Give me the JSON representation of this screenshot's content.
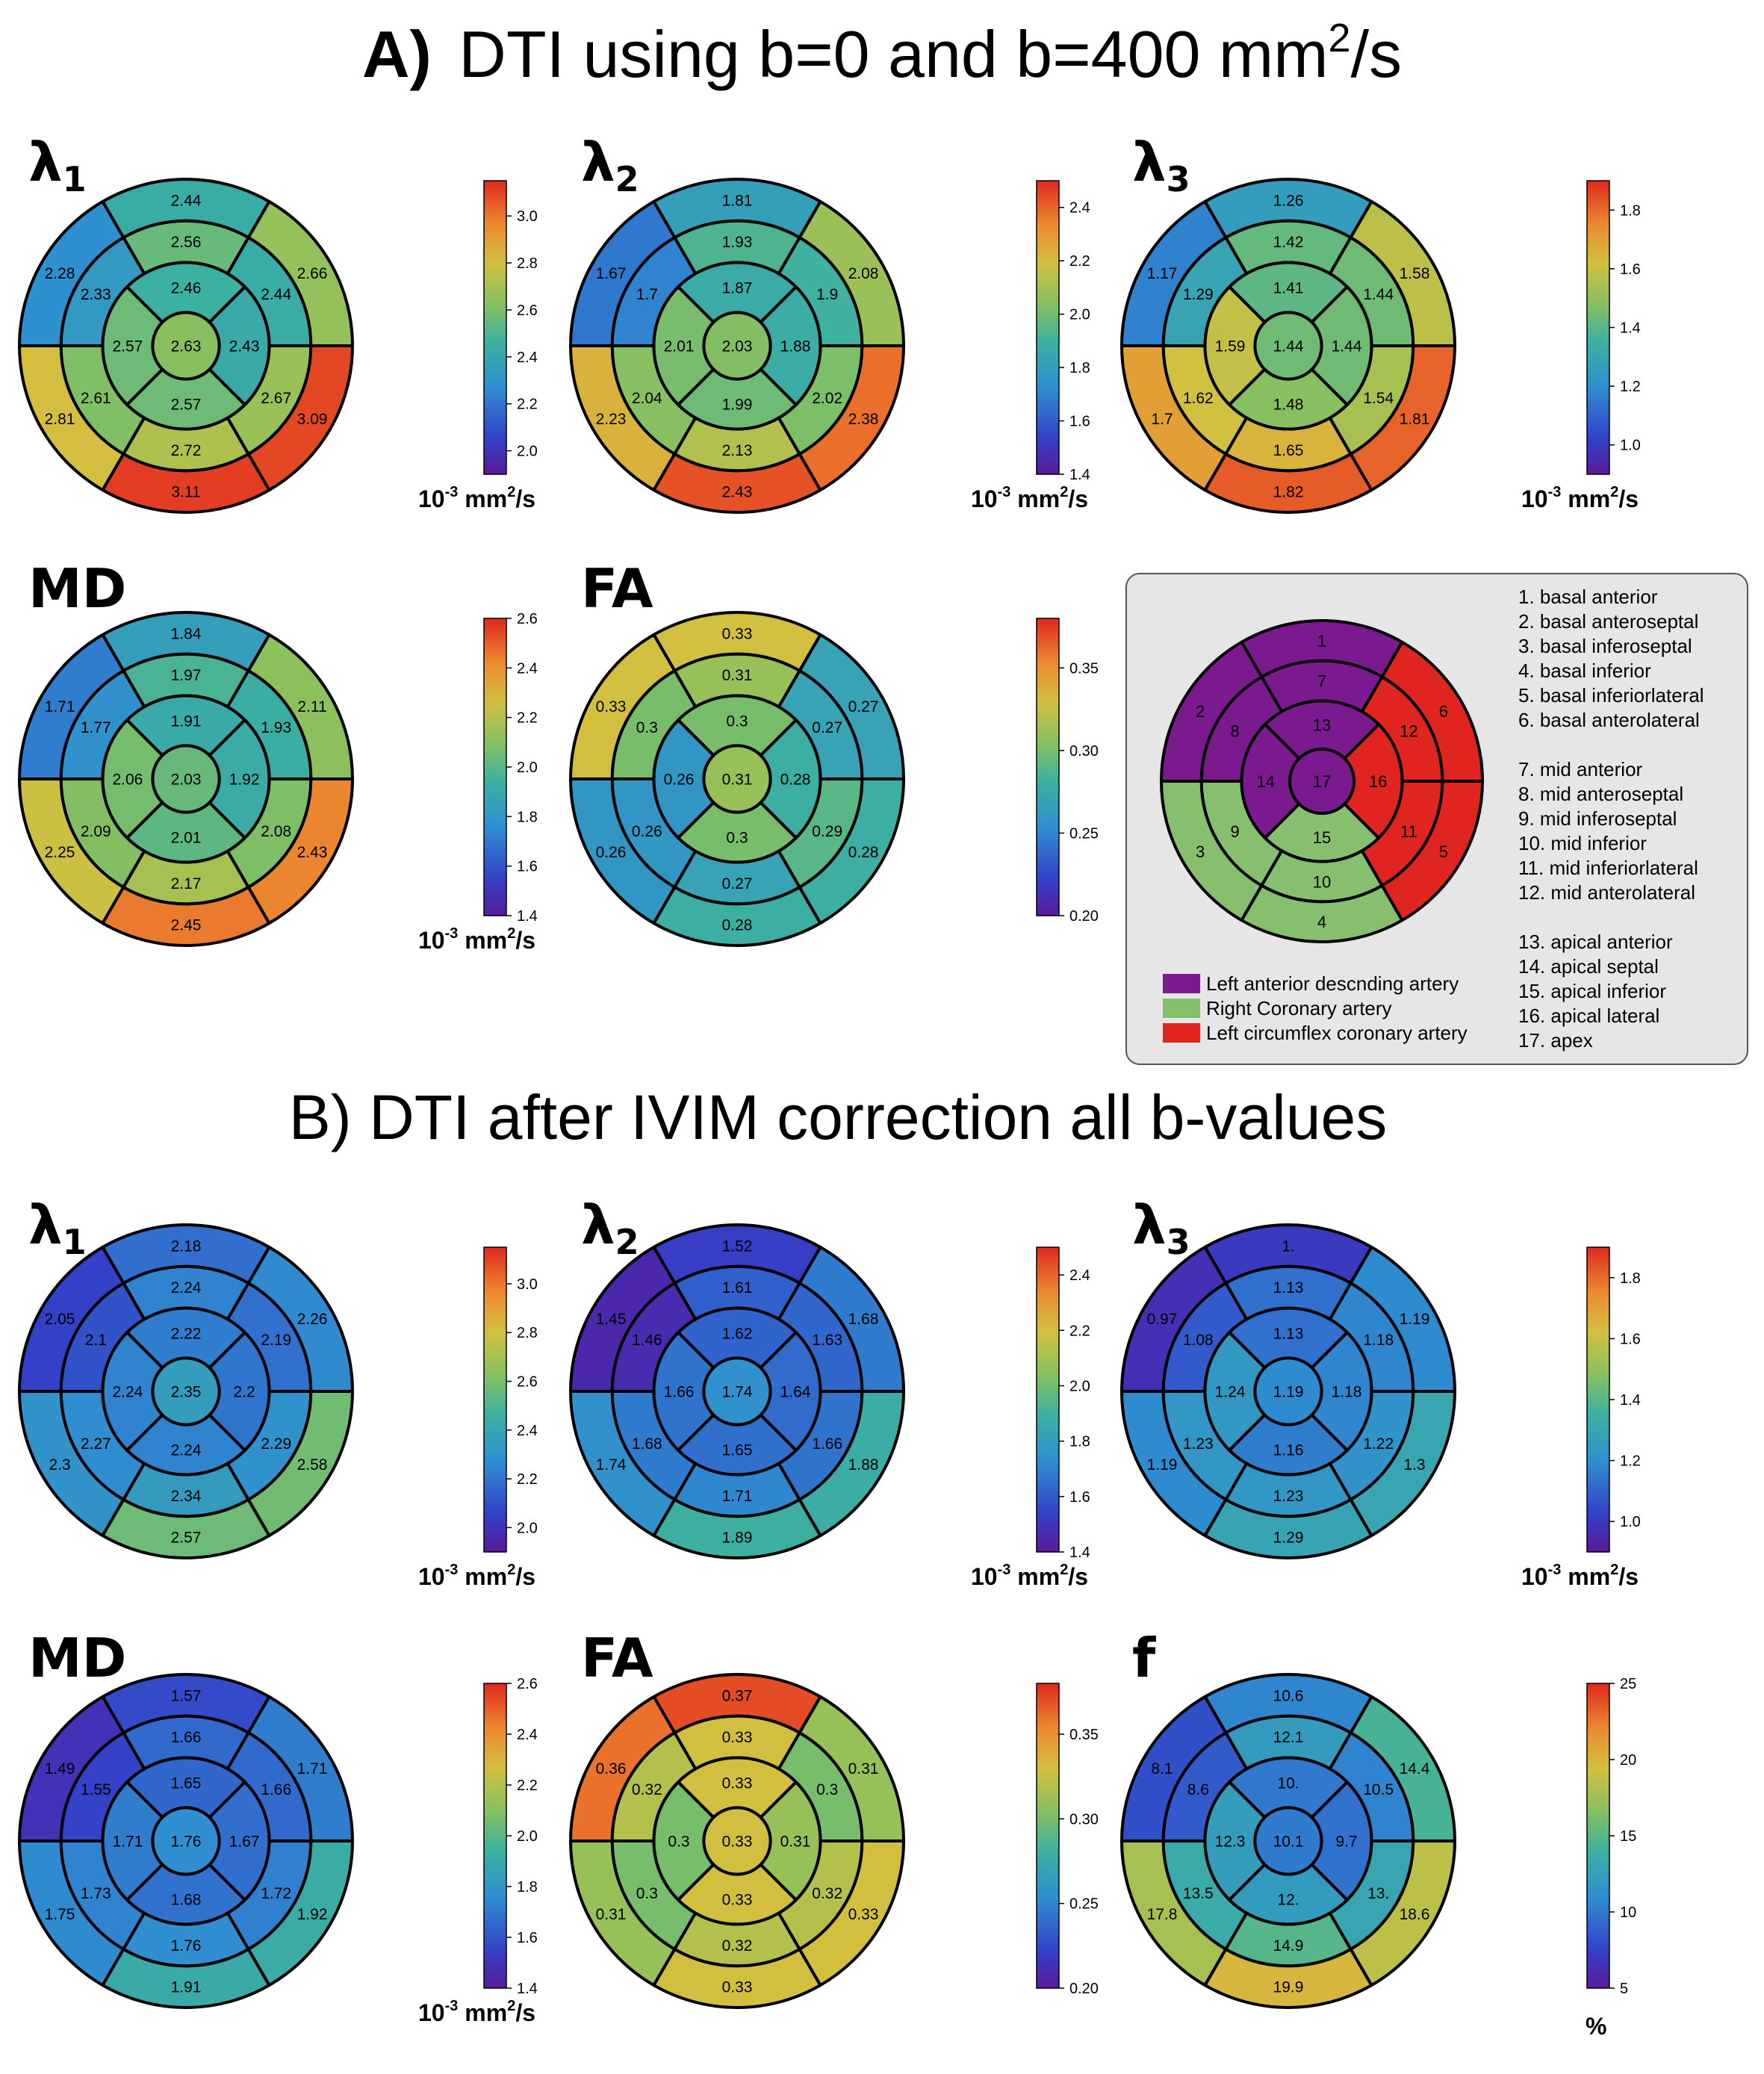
{
  "sections": {
    "a": {
      "prefix": "A)",
      "title": "DTI using b=0 and b=400 mm",
      "sup": "2",
      "suffix": "/s"
    },
    "b": {
      "title": "B) DTI after IVIM correction all b-values"
    }
  },
  "unit": {
    "base": "10",
    "exp": "-3",
    "rest": " mm",
    "sq": "2",
    "tail": "/s"
  },
  "percent_unit": "%",
  "legend": {
    "artery_keys": [
      {
        "label": "Left anterior descnding artery",
        "color": "#7b1a8e"
      },
      {
        "label": "Right Coronary artery",
        "color": "#86c06f"
      },
      {
        "label": "Left circumflex coronary artery",
        "color": "#e0241f"
      }
    ],
    "segment_names": [
      "1.  basal anterior",
      "2.  basal anteroseptal",
      "3.  basal inferoseptal",
      "4.  basal inferior",
      "5.  basal inferiorlateral",
      "6.  basal anterolateral",
      "7.  mid anterior",
      "8.  mid anteroseptal",
      "9.  mid inferoseptal",
      "10. mid inferior",
      "11. mid inferiorlateral",
      "12. mid anterolateral",
      "13. apical anterior",
      "14. apical septal",
      "15. apical inferior",
      "16. apical lateral",
      "17. apex"
    ],
    "map": {
      "territories": [
        "lad",
        "lad",
        "rca",
        "rca",
        "lcx",
        "lcx",
        "lad",
        "lad",
        "rca",
        "rca",
        "lcx",
        "lcx",
        "lad",
        "lad",
        "rca",
        "lcx",
        "lad"
      ],
      "colors": {
        "lad": "#7b1a8e",
        "rca": "#86c06f",
        "lcx": "#e0241f"
      },
      "labels": [
        "1",
        "2",
        "3",
        "4",
        "5",
        "6",
        "7",
        "8",
        "9",
        "10",
        "11",
        "12",
        "13",
        "14",
        "15",
        "16",
        "17"
      ]
    }
  },
  "chart_data": [
    {
      "type": "bullseye",
      "section": "A",
      "name": "λ",
      "sub": "1",
      "unit": "mm2",
      "vmin": 1.9,
      "vmax": 3.15,
      "ticks": [
        {
          "v": 2.0,
          "l": "2.0"
        },
        {
          "v": 2.2,
          "l": "2.2"
        },
        {
          "v": 2.4,
          "l": "2.4"
        },
        {
          "v": 2.6,
          "l": "2.6"
        },
        {
          "v": 2.8,
          "l": "2.8"
        },
        {
          "v": 3.0,
          "l": "3.0"
        }
      ],
      "labels": [
        "2.44",
        "2.28",
        "2.81",
        "3.11",
        "3.09",
        "2.66",
        "2.56",
        "2.33",
        "2.61",
        "2.72",
        "2.67",
        "2.44",
        "2.46",
        "2.57",
        "2.57",
        "2.43",
        "2.63"
      ]
    },
    {
      "type": "bullseye",
      "section": "A",
      "name": "λ",
      "sub": "2",
      "unit": "mm2",
      "vmin": 1.4,
      "vmax": 2.5,
      "ticks": [
        {
          "v": 1.4,
          "l": "1.4"
        },
        {
          "v": 1.6,
          "l": "1.6"
        },
        {
          "v": 1.8,
          "l": "1.8"
        },
        {
          "v": 2.0,
          "l": "2.0"
        },
        {
          "v": 2.2,
          "l": "2.2"
        },
        {
          "v": 2.4,
          "l": "2.4"
        }
      ],
      "labels": [
        "1.81",
        "1.67",
        "2.23",
        "2.43",
        "2.38",
        "2.08",
        "1.93",
        "1.7",
        "2.04",
        "2.13",
        "2.02",
        "1.9",
        "1.87",
        "2.01",
        "1.99",
        "1.88",
        "2.03"
      ]
    },
    {
      "type": "bullseye",
      "section": "A",
      "name": "λ",
      "sub": "3",
      "unit": "mm2",
      "vmin": 0.9,
      "vmax": 1.9,
      "ticks": [
        {
          "v": 1.0,
          "l": "1.0"
        },
        {
          "v": 1.2,
          "l": "1.2"
        },
        {
          "v": 1.4,
          "l": "1.4"
        },
        {
          "v": 1.6,
          "l": "1.6"
        },
        {
          "v": 1.8,
          "l": "1.8"
        }
      ],
      "labels": [
        "1.26",
        "1.17",
        "1.7",
        "1.82",
        "1.81",
        "1.58",
        "1.42",
        "1.29",
        "1.62",
        "1.65",
        "1.54",
        "1.44",
        "1.41",
        "1.59",
        "1.48",
        "1.44",
        "1.44"
      ]
    },
    {
      "type": "bullseye",
      "section": "A",
      "name": "MD",
      "sub": "",
      "unit": "mm2",
      "vmin": 1.4,
      "vmax": 2.6,
      "ticks": [
        {
          "v": 1.4,
          "l": "1.4"
        },
        {
          "v": 1.6,
          "l": "1.6"
        },
        {
          "v": 1.8,
          "l": "1.8"
        },
        {
          "v": 2.0,
          "l": "2.0"
        },
        {
          "v": 2.2,
          "l": "2.2"
        },
        {
          "v": 2.4,
          "l": "2.4"
        },
        {
          "v": 2.6,
          "l": "2.6"
        }
      ],
      "labels": [
        "1.84",
        "1.71",
        "2.25",
        "2.45",
        "2.43",
        "2.11",
        "1.97",
        "1.77",
        "2.09",
        "2.17",
        "2.08",
        "1.93",
        "1.91",
        "2.06",
        "2.01",
        "1.92",
        "2.03"
      ]
    },
    {
      "type": "bullseye",
      "section": "A",
      "name": "FA",
      "sub": "",
      "unit": "",
      "vmin": 0.2,
      "vmax": 0.38,
      "ticks": [
        {
          "v": 0.2,
          "l": "0.20"
        },
        {
          "v": 0.25,
          "l": "0.25"
        },
        {
          "v": 0.3,
          "l": "0.30"
        },
        {
          "v": 0.35,
          "l": "0.35"
        }
      ],
      "labels": [
        "0.33",
        "0.33",
        "0.26",
        "0.28",
        "0.28",
        "0.27",
        "0.31",
        "0.3",
        "0.26",
        "0.27",
        "0.29",
        "0.27",
        "0.3",
        "0.26",
        "0.3",
        "0.28",
        "0.31"
      ]
    },
    {
      "type": "bullseye",
      "section": "B",
      "name": "λ",
      "sub": "1",
      "unit": "mm2",
      "vmin": 1.9,
      "vmax": 3.15,
      "ticks": [
        {
          "v": 2.0,
          "l": "2.0"
        },
        {
          "v": 2.2,
          "l": "2.2"
        },
        {
          "v": 2.4,
          "l": "2.4"
        },
        {
          "v": 2.6,
          "l": "2.6"
        },
        {
          "v": 2.8,
          "l": "2.8"
        },
        {
          "v": 3.0,
          "l": "3.0"
        }
      ],
      "labels": [
        "2.18",
        "2.05",
        "2.3",
        "2.57",
        "2.58",
        "2.26",
        "2.24",
        "2.1",
        "2.27",
        "2.34",
        "2.29",
        "2.19",
        "2.22",
        "2.24",
        "2.24",
        "2.2",
        "2.35"
      ]
    },
    {
      "type": "bullseye",
      "section": "B",
      "name": "λ",
      "sub": "2",
      "unit": "mm2",
      "vmin": 1.4,
      "vmax": 2.5,
      "ticks": [
        {
          "v": 1.4,
          "l": "1.4"
        },
        {
          "v": 1.6,
          "l": "1.6"
        },
        {
          "v": 1.8,
          "l": "1.8"
        },
        {
          "v": 2.0,
          "l": "2.0"
        },
        {
          "v": 2.2,
          "l": "2.2"
        },
        {
          "v": 2.4,
          "l": "2.4"
        }
      ],
      "labels": [
        "1.52",
        "1.45",
        "1.74",
        "1.89",
        "1.88",
        "1.68",
        "1.61",
        "1.46",
        "1.68",
        "1.71",
        "1.66",
        "1.63",
        "1.62",
        "1.66",
        "1.65",
        "1.64",
        "1.74"
      ]
    },
    {
      "type": "bullseye",
      "section": "B",
      "name": "λ",
      "sub": "3",
      "unit": "mm2",
      "vmin": 0.9,
      "vmax": 1.9,
      "ticks": [
        {
          "v": 1.0,
          "l": "1.0"
        },
        {
          "v": 1.2,
          "l": "1.2"
        },
        {
          "v": 1.4,
          "l": "1.4"
        },
        {
          "v": 1.6,
          "l": "1.6"
        },
        {
          "v": 1.8,
          "l": "1.8"
        }
      ],
      "labels": [
        "1.",
        "0.97",
        "1.19",
        "1.29",
        "1.3",
        "1.19",
        "1.13",
        "1.08",
        "1.23",
        "1.23",
        "1.22",
        "1.18",
        "1.13",
        "1.24",
        "1.16",
        "1.18",
        "1.19"
      ]
    },
    {
      "type": "bullseye",
      "section": "B",
      "name": "MD",
      "sub": "",
      "unit": "mm2",
      "vmin": 1.4,
      "vmax": 2.6,
      "ticks": [
        {
          "v": 1.4,
          "l": "1.4"
        },
        {
          "v": 1.6,
          "l": "1.6"
        },
        {
          "v": 1.8,
          "l": "1.8"
        },
        {
          "v": 2.0,
          "l": "2.0"
        },
        {
          "v": 2.2,
          "l": "2.2"
        },
        {
          "v": 2.4,
          "l": "2.4"
        },
        {
          "v": 2.6,
          "l": "2.6"
        }
      ],
      "labels": [
        "1.57",
        "1.49",
        "1.75",
        "1.91",
        "1.92",
        "1.71",
        "1.66",
        "1.55",
        "1.73",
        "1.76",
        "1.72",
        "1.66",
        "1.65",
        "1.71",
        "1.68",
        "1.67",
        "1.76"
      ]
    },
    {
      "type": "bullseye",
      "section": "B",
      "name": "FA",
      "sub": "",
      "unit": "",
      "vmin": 0.2,
      "vmax": 0.38,
      "ticks": [
        {
          "v": 0.2,
          "l": "0.20"
        },
        {
          "v": 0.25,
          "l": "0.25"
        },
        {
          "v": 0.3,
          "l": "0.30"
        },
        {
          "v": 0.35,
          "l": "0.35"
        }
      ],
      "labels": [
        "0.37",
        "0.36",
        "0.31",
        "0.33",
        "0.33",
        "0.31",
        "0.33",
        "0.32",
        "0.3",
        "0.32",
        "0.32",
        "0.3",
        "0.33",
        "0.3",
        "0.33",
        "0.31",
        "0.33"
      ]
    },
    {
      "type": "bullseye",
      "section": "B",
      "name": "f",
      "sub": "",
      "unit": "%",
      "vmin": 5,
      "vmax": 25,
      "ticks": [
        {
          "v": 5,
          "l": "5"
        },
        {
          "v": 10,
          "l": "10"
        },
        {
          "v": 15,
          "l": "15"
        },
        {
          "v": 20,
          "l": "20"
        },
        {
          "v": 25,
          "l": "25"
        }
      ],
      "labels": [
        "10.6",
        "8.1",
        "17.8",
        "19.9",
        "18.6",
        "14.4",
        "12.1",
        "8.6",
        "13.5",
        "14.9",
        "13.",
        "10.5",
        "10.",
        "12.3",
        "12.",
        "9.7",
        "10.1"
      ]
    }
  ]
}
